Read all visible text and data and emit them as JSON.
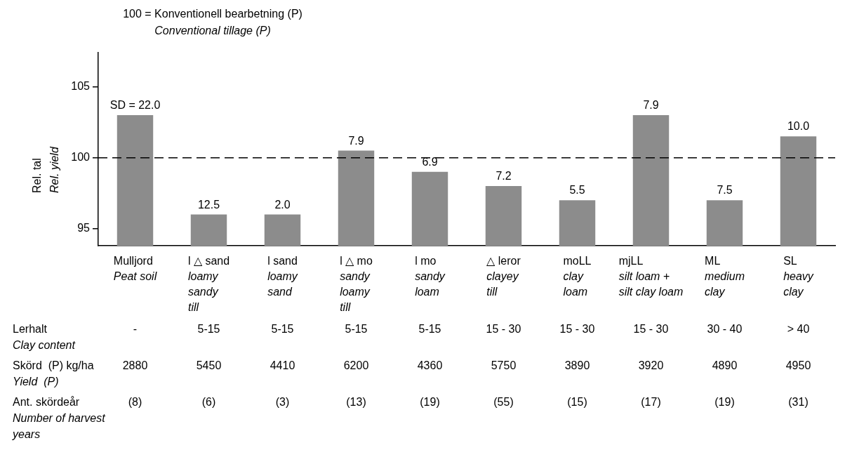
{
  "chart_data": {
    "type": "bar",
    "title": "100 = Konventionell bearbetning (P)\nConventional tillage (P)",
    "ylabel": "Rel. tal\nRel. yield",
    "categories": [
      "Mulljord\nPeat soil",
      "l △ sand\nloamy\nsandy\ntill",
      "l sand\nloamy\nsand",
      "l △ mo\nsandy\nloamy\ntill",
      "l mo\nsandy\nloam",
      "△ leror\nclayey\ntill",
      "moLL\nclay\nloam",
      "mjLL\nsilt loam +\nsilt clay loam",
      "ML\nmedium\nclay",
      "SL\nheavy\nclay"
    ],
    "values": [
      103,
      96,
      96,
      100.5,
      99,
      98,
      97,
      103,
      97,
      101.5
    ],
    "color": "#8c8c8c",
    "ylim": [
      93.8,
      107.4
    ],
    "yticks": [
      95,
      100,
      105
    ],
    "ref_lines": [
      {
        "axis": "y",
        "value": 100,
        "line_style": "dashed",
        "color": "#000000"
      }
    ],
    "annotations": [
      {
        "text": "SD = 22.0",
        "x": "Mulljord\nPeat soil",
        "y": 103
      },
      {
        "text": "12.5",
        "x": "l △ sand\nloamy\nsandy\ntill",
        "y": 96
      },
      {
        "text": "2.0",
        "x": "l sand\nloamy\nsand",
        "y": 96
      },
      {
        "text": "7.9",
        "x": "l △ mo\nsandy\nloamy\ntill",
        "y": 100.5
      },
      {
        "text": "6.9",
        "x": "l mo\nsandy\nloam",
        "y": 99
      },
      {
        "text": "7.2",
        "x": "△ leror\nclayey\ntill",
        "y": 98
      },
      {
        "text": "5.5",
        "x": "moLL\nclay\nloam",
        "y": 97
      },
      {
        "text": "7.9",
        "x": "mjLL\nsilt loam +\nsilt clay loam",
        "y": 103
      },
      {
        "text": "7.5",
        "x": "ML\nmedium\nclay",
        "y": 97
      },
      {
        "text": "10.0",
        "x": "SL\nheavy\nclay",
        "y": 101.5
      },
      "Lerhalt\nClay content",
      "-",
      "5-15",
      "5-15",
      "5-15",
      "5-15",
      "15 - 30",
      "15 - 30",
      "15 - 30",
      "30 - 40",
      "> 40",
      "Skörd  (P) kg/ha\nYield  (P)",
      "2880",
      "5450",
      "4410",
      "6200",
      "4360",
      "5750",
      "3890",
      "3920",
      "4890",
      "4950",
      "Ant. skördeår\nNumber of harvest\nyears",
      "(8)",
      "(6)",
      "(3)",
      "(13)",
      "(19)",
      "(55)",
      "(15)",
      "(17)",
      "(19)",
      "(31)"
    ]
  }
}
